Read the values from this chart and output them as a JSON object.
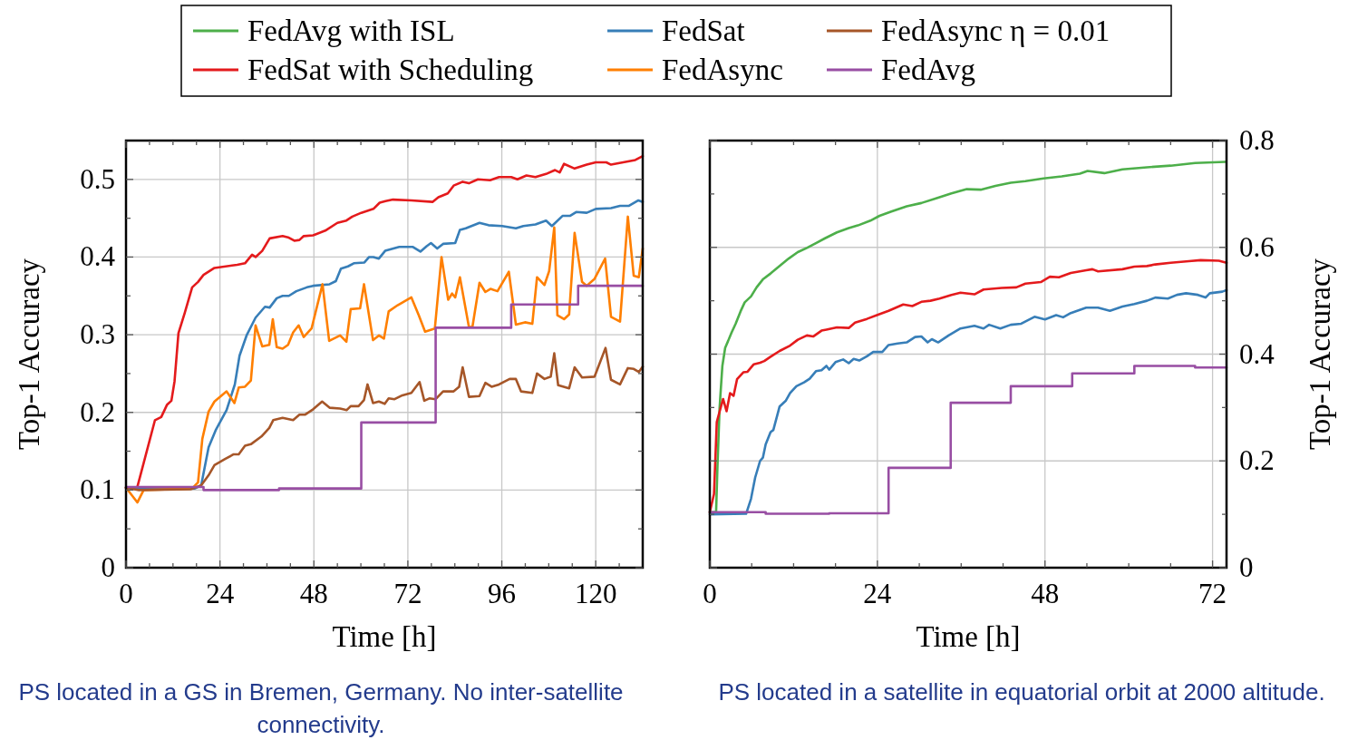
{
  "chart_data": [
    {
      "type": "line",
      "xlabel": "Time [h]",
      "ylabel": "Top-1 Accuracy",
      "xlim": [
        0,
        132
      ],
      "ylim": [
        0,
        0.55
      ],
      "xticks": [
        0,
        {
          "value": 6,
          "label": null
        },
        {
          "value": 12,
          "label": null
        },
        {
          "value": 18,
          "label": null
        },
        24,
        {
          "value": 30,
          "label": null
        },
        {
          "value": 36,
          "label": null
        },
        {
          "value": 42,
          "label": null
        },
        48,
        {
          "value": 54,
          "label": null
        },
        {
          "value": 60,
          "label": null
        },
        {
          "value": 66,
          "label": null
        },
        72,
        {
          "value": 78,
          "label": null
        },
        {
          "value": 84,
          "label": null
        },
        {
          "value": 90,
          "label": null
        },
        96,
        {
          "value": 102,
          "label": null
        },
        {
          "value": 108,
          "label": null
        },
        {
          "value": 114,
          "label": null
        },
        120,
        {
          "value": 126,
          "label": null
        }
      ],
      "yticks": [
        0,
        {
          "value": 0.05,
          "label": null
        },
        0.1,
        {
          "value": 0.15,
          "label": null
        },
        0.2,
        {
          "value": 0.25,
          "label": null
        },
        0.3,
        {
          "value": 0.35,
          "label": null
        },
        0.4,
        {
          "value": 0.45,
          "label": null
        },
        0.5
      ],
      "grid": true,
      "legend": "top",
      "annotations": [
        "PS located in a GS in Bremen, Germany. No inter-satellite connectivity."
      ],
      "series": [
        {
          "name": "FedSat with Scheduling",
          "color": "#e41a1c",
          "x": [
            0,
            2.9,
            7.4,
            9,
            10.5,
            11.6,
            12.4,
            13.4,
            15,
            16.9,
            18.4,
            19.8,
            22.6,
            28.4,
            30.4,
            32.2,
            33.1,
            34.8,
            36.7,
            40,
            41.6,
            43,
            44.3,
            45.4,
            47.8,
            50.9,
            54,
            56.3,
            57.8,
            60.1,
            63.2,
            64.8,
            66.3,
            68.2,
            72.9,
            78.3,
            79.8,
            82.2,
            83.7,
            86,
            87.6,
            89.9,
            93,
            95.3,
            98.4,
            100,
            102.3,
            104.6,
            107.3,
            109.6,
            110.8,
            111.9,
            114.6,
            117.7,
            120,
            122.7,
            123.9,
            127,
            130.1,
            132
          ],
          "values": [
            0.103,
            0.104,
            0.19,
            0.194,
            0.21,
            0.215,
            0.24,
            0.302,
            0.328,
            0.361,
            0.368,
            0.377,
            0.386,
            0.39,
            0.392,
            0.403,
            0.4,
            0.408,
            0.424,
            0.427,
            0.425,
            0.421,
            0.422,
            0.427,
            0.428,
            0.434,
            0.444,
            0.447,
            0.452,
            0.457,
            0.462,
            0.47,
            0.472,
            0.474,
            0.473,
            0.471,
            0.477,
            0.482,
            0.492,
            0.497,
            0.495,
            0.5,
            0.499,
            0.503,
            0.503,
            0.5,
            0.505,
            0.503,
            0.507,
            0.512,
            0.509,
            0.52,
            0.514,
            0.519,
            0.522,
            0.522,
            0.519,
            0.522,
            0.525,
            0.53
          ]
        },
        {
          "name": "FedSat",
          "color": "#377eb8",
          "x": [
            0,
            17.6,
            19.2,
            21.1,
            23,
            25.7,
            27.8,
            29,
            30.8,
            33.1,
            35.5,
            36.7,
            38.5,
            40,
            41.6,
            43.5,
            46.2,
            47.8,
            52,
            53.6,
            54.9,
            56.7,
            58.2,
            60.9,
            62.1,
            63.2,
            64.6,
            66.2,
            69.8,
            73.3,
            75.2,
            76.8,
            77.9,
            79.5,
            81,
            84.1,
            85.3,
            86.8,
            90.3,
            92.6,
            96.1,
            99.6,
            101.5,
            104.6,
            107.3,
            108.8,
            111.5,
            113.4,
            115,
            117.7,
            120,
            123.9,
            126.2,
            128.5,
            130.9,
            132
          ],
          "values": [
            0.103,
            0.102,
            0.106,
            0.155,
            0.178,
            0.203,
            0.236,
            0.273,
            0.299,
            0.322,
            0.336,
            0.335,
            0.347,
            0.35,
            0.35,
            0.356,
            0.361,
            0.363,
            0.365,
            0.369,
            0.385,
            0.388,
            0.392,
            0.393,
            0.4,
            0.4,
            0.398,
            0.408,
            0.413,
            0.413,
            0.407,
            0.414,
            0.418,
            0.411,
            0.417,
            0.418,
            0.435,
            0.437,
            0.444,
            0.441,
            0.44,
            0.437,
            0.44,
            0.442,
            0.447,
            0.44,
            0.453,
            0.453,
            0.458,
            0.457,
            0.462,
            0.463,
            0.466,
            0.466,
            0.473,
            0.471
          ]
        },
        {
          "name": "FedAsync",
          "color": "#ff7f00",
          "x": [
            0,
            2.9,
            4.5,
            16.9,
            18.4,
            19.5,
            21.1,
            22.6,
            25.7,
            27.7,
            28.8,
            30.4,
            31.9,
            33.1,
            34.8,
            36.6,
            37.5,
            38.5,
            40,
            41.4,
            42.7,
            44.1,
            45.4,
            47.4,
            50.2,
            51.9,
            54.7,
            56.3,
            57.4,
            59.8,
            60.8,
            63.1,
            64.6,
            65.9,
            67.1,
            69.4,
            72.9,
            74.8,
            76.4,
            78.9,
            80.6,
            82.3,
            83.3,
            84.1,
            85.3,
            87.6,
            88.5,
            90.3,
            91.8,
            93.1,
            94.9,
            97.8,
            99.6,
            101.9,
            103.8,
            105,
            106.9,
            108.1,
            109.4,
            110.2,
            111.9,
            113.2,
            114.6,
            116.5,
            117.7,
            119.7,
            122.4,
            123.9,
            126.2,
            128.2,
            129.7,
            131,
            132
          ],
          "values": [
            0.103,
            0.084,
            0.1,
            0.102,
            0.11,
            0.166,
            0.201,
            0.214,
            0.227,
            0.212,
            0.232,
            0.233,
            0.241,
            0.312,
            0.285,
            0.287,
            0.32,
            0.284,
            0.282,
            0.287,
            0.303,
            0.312,
            0.297,
            0.308,
            0.365,
            0.292,
            0.299,
            0.291,
            0.333,
            0.334,
            0.365,
            0.293,
            0.299,
            0.295,
            0.33,
            0.338,
            0.348,
            0.325,
            0.304,
            0.308,
            0.4,
            0.345,
            0.353,
            0.348,
            0.374,
            0.31,
            0.31,
            0.367,
            0.355,
            0.359,
            0.356,
            0.381,
            0.313,
            0.316,
            0.314,
            0.374,
            0.364,
            0.382,
            0.438,
            0.325,
            0.32,
            0.326,
            0.431,
            0.368,
            0.363,
            0.372,
            0.398,
            0.323,
            0.317,
            0.452,
            0.376,
            0.374,
            0.411
          ]
        },
        {
          "name": "FedAsync η = 0.01",
          "color": "#a65628",
          "x": [
            0,
            3.3,
            16.5,
            19.2,
            21.1,
            22.6,
            25.3,
            27.5,
            28.8,
            30.4,
            31.9,
            34.6,
            36.6,
            37.6,
            40,
            42.7,
            44.3,
            45.7,
            47.8,
            50.1,
            52,
            54.7,
            56.4,
            57.4,
            59.4,
            60.8,
            61.7,
            63.1,
            64.6,
            66.1,
            67.1,
            68.6,
            70.6,
            72.9,
            75,
            76.2,
            77.5,
            79.1,
            81,
            83.7,
            85.1,
            86,
            87.6,
            90.3,
            91.8,
            93.4,
            95.3,
            98,
            99.6,
            100.9,
            103.8,
            105,
            106.9,
            108.5,
            109.4,
            110.4,
            113.2,
            114.6,
            116.5,
            119.7,
            122.5,
            123.9,
            126.2,
            128.2,
            129.7,
            131,
            132
          ],
          "values": [
            0.103,
            0.1,
            0.101,
            0.106,
            0.119,
            0.132,
            0.14,
            0.146,
            0.146,
            0.157,
            0.159,
            0.169,
            0.18,
            0.19,
            0.193,
            0.19,
            0.197,
            0.197,
            0.204,
            0.214,
            0.206,
            0.205,
            0.203,
            0.208,
            0.208,
            0.216,
            0.236,
            0.212,
            0.214,
            0.211,
            0.218,
            0.217,
            0.222,
            0.225,
            0.239,
            0.215,
            0.218,
            0.217,
            0.227,
            0.227,
            0.233,
            0.258,
            0.22,
            0.221,
            0.238,
            0.233,
            0.236,
            0.243,
            0.243,
            0.227,
            0.225,
            0.25,
            0.243,
            0.246,
            0.276,
            0.235,
            0.231,
            0.258,
            0.245,
            0.246,
            0.283,
            0.242,
            0.236,
            0.257,
            0.256,
            0.252,
            0.259
          ]
        },
        {
          "name": "FedAvg",
          "type": "step",
          "color": "#984ea3",
          "x": [
            0,
            19.8,
            39.1,
            60.1,
            79.1,
            98.4,
            115.5,
            132
          ],
          "values": [
            0.104,
            0.1,
            0.102,
            0.187,
            0.309,
            0.339,
            0.363,
            0.363
          ]
        }
      ]
    },
    {
      "type": "line",
      "xlabel": "Time [h]",
      "y2label": "Top-1 Accuracy",
      "xlim": [
        0,
        74
      ],
      "y2lim": [
        0,
        0.8
      ],
      "xticks": [
        0,
        {
          "value": 6,
          "label": null
        },
        {
          "value": 12,
          "label": null
        },
        {
          "value": 18,
          "label": null
        },
        24,
        {
          "value": 30,
          "label": null
        },
        {
          "value": 36,
          "label": null
        },
        {
          "value": 42,
          "label": null
        },
        48,
        {
          "value": 54,
          "label": null
        },
        {
          "value": 60,
          "label": null
        },
        {
          "value": 66,
          "label": null
        },
        72
      ],
      "y2ticks": [
        0,
        {
          "value": 0.1,
          "label": null
        },
        0.2,
        {
          "value": 0.3,
          "label": null
        },
        0.4,
        {
          "value": 0.5,
          "label": null
        },
        0.6,
        {
          "value": 0.7,
          "label": null
        },
        0.8
      ],
      "grid": true,
      "annotations": [
        "PS located in a satellite in equatorial orbit at 2000 altitude."
      ],
      "series": [
        {
          "name": "FedAvg with ISL",
          "color": "#4daf4a",
          "axis": "y2",
          "x": [
            0,
            0.9,
            1.1,
            1.4,
            1.6,
            1.8,
            2.2,
            2.6,
            3.1,
            3.7,
            4.4,
            5,
            5.9,
            6.7,
            7.6,
            8.7,
            10,
            11.3,
            12.6,
            13.9,
            15.2,
            16.5,
            18.2,
            19.9,
            21.2,
            23,
            24.3,
            26,
            28.2,
            30.3,
            32.5,
            34.6,
            36.8,
            38.8,
            40.9,
            43.1,
            45.2,
            47.8,
            50.4,
            53,
            54.1,
            56.5,
            59.1,
            62.6,
            66,
            69.5,
            73.8
          ],
          "values": [
            0.104,
            0.104,
            0.191,
            0.299,
            0.339,
            0.378,
            0.412,
            0.424,
            0.44,
            0.457,
            0.48,
            0.497,
            0.508,
            0.525,
            0.54,
            0.551,
            0.565,
            0.579,
            0.591,
            0.599,
            0.608,
            0.617,
            0.628,
            0.636,
            0.641,
            0.65,
            0.659,
            0.667,
            0.677,
            0.683,
            0.692,
            0.701,
            0.709,
            0.708,
            0.715,
            0.721,
            0.724,
            0.729,
            0.733,
            0.738,
            0.743,
            0.739,
            0.746,
            0.75,
            0.753,
            0.758,
            0.76
          ]
        },
        {
          "name": "FedSat with Scheduling",
          "color": "#e41a1c",
          "axis": "y2",
          "x": [
            0,
            0.6,
            1,
            1.9,
            2.4,
            2.9,
            3.4,
            3.9,
            4.8,
            5.4,
            6.3,
            7.2,
            7.8,
            8.7,
            10,
            11.5,
            12.6,
            13.9,
            14.8,
            16,
            16.7,
            18.2,
            19.9,
            20.8,
            22.5,
            24.1,
            25.6,
            27.7,
            29,
            30.3,
            31.6,
            32.9,
            34.6,
            35.9,
            37.9,
            39.2,
            41.8,
            43.9,
            45.2,
            47.4,
            48.7,
            50,
            51.7,
            53.9,
            54.8,
            55.6,
            59.1,
            60.8,
            62.6,
            63.8,
            66,
            68.6,
            70.3,
            72.9,
            74
          ],
          "values": [
            0.104,
            0.138,
            0.273,
            0.316,
            0.293,
            0.327,
            0.322,
            0.353,
            0.366,
            0.367,
            0.381,
            0.384,
            0.387,
            0.395,
            0.406,
            0.416,
            0.427,
            0.435,
            0.433,
            0.444,
            0.446,
            0.45,
            0.449,
            0.459,
            0.466,
            0.474,
            0.481,
            0.493,
            0.49,
            0.498,
            0.5,
            0.504,
            0.511,
            0.515,
            0.512,
            0.521,
            0.524,
            0.525,
            0.532,
            0.535,
            0.545,
            0.544,
            0.552,
            0.557,
            0.559,
            0.555,
            0.559,
            0.564,
            0.565,
            0.568,
            0.571,
            0.574,
            0.576,
            0.575,
            0.571
          ]
        },
        {
          "name": "FedSat",
          "color": "#377eb8",
          "axis": "y2",
          "x": [
            0,
            5.2,
            5.9,
            6.5,
            7.2,
            7.6,
            8,
            8.7,
            9.1,
            10,
            10.9,
            11.5,
            12.4,
            13.5,
            14.3,
            15.2,
            16,
            16.7,
            17.1,
            18,
            19.1,
            19.9,
            20.6,
            21.4,
            22.5,
            23.4,
            24.7,
            25.6,
            26.9,
            28.2,
            29.4,
            30.3,
            31.2,
            31.8,
            32.7,
            34.2,
            35.9,
            37.9,
            39.2,
            40,
            41.6,
            43.1,
            44.6,
            46.5,
            48,
            49.6,
            50.6,
            51.7,
            53.9,
            55.6,
            57.3,
            59.1,
            60.8,
            62.6,
            63.8,
            65.6,
            66.9,
            68.2,
            69.9,
            71,
            71.6,
            73.4,
            74
          ],
          "values": [
            0.1,
            0.101,
            0.129,
            0.169,
            0.2,
            0.206,
            0.231,
            0.254,
            0.258,
            0.302,
            0.313,
            0.327,
            0.34,
            0.347,
            0.354,
            0.368,
            0.37,
            0.378,
            0.371,
            0.385,
            0.39,
            0.383,
            0.391,
            0.388,
            0.396,
            0.404,
            0.404,
            0.417,
            0.42,
            0.422,
            0.432,
            0.433,
            0.422,
            0.428,
            0.422,
            0.435,
            0.448,
            0.453,
            0.448,
            0.455,
            0.448,
            0.455,
            0.457,
            0.47,
            0.465,
            0.473,
            0.469,
            0.477,
            0.487,
            0.487,
            0.481,
            0.489,
            0.494,
            0.5,
            0.506,
            0.504,
            0.511,
            0.514,
            0.511,
            0.506,
            0.514,
            0.517,
            0.52
          ]
        },
        {
          "name": "FedAvg",
          "type": "step",
          "color": "#984ea3",
          "axis": "y2",
          "x": [
            0,
            8,
            17.1,
            25.6,
            34.5,
            43.1,
            51.9,
            60.8,
            69.5,
            74
          ],
          "values": [
            0.104,
            0.101,
            0.102,
            0.187,
            0.309,
            0.34,
            0.364,
            0.378,
            0.375,
            0.375
          ]
        }
      ]
    }
  ]
}
